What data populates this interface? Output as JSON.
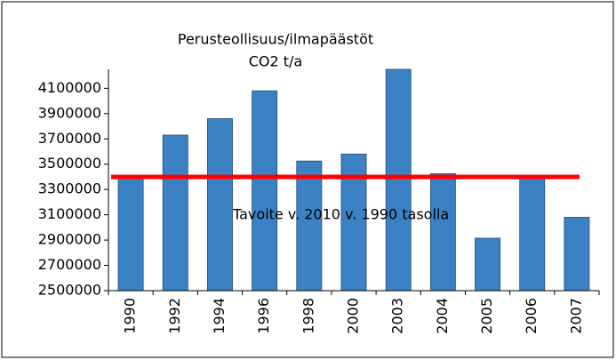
{
  "chart_data": {
    "type": "bar",
    "title": "Perusteollisuus/ilmapäästöt",
    "subtitle": "CO2 t/a",
    "categories": [
      "1990",
      "1992",
      "1994",
      "1996",
      "1998",
      "2000",
      "2003",
      "2004",
      "2005",
      "2006",
      "2007"
    ],
    "values": [
      3400000,
      3730000,
      3860000,
      4080000,
      3525000,
      3580000,
      4250000,
      3425000,
      2915000,
      3400000,
      3080000
    ],
    "color": "#3b82c4",
    "ylim": [
      2500000,
      4250000
    ],
    "yticks": [
      2500000,
      2700000,
      2900000,
      3100000,
      3300000,
      3500000,
      3700000,
      3900000,
      4100000
    ],
    "target": {
      "value": 3400000,
      "label": "Tavoite v. 2010 v. 1990 tasolla",
      "color": "#ff0000"
    }
  }
}
